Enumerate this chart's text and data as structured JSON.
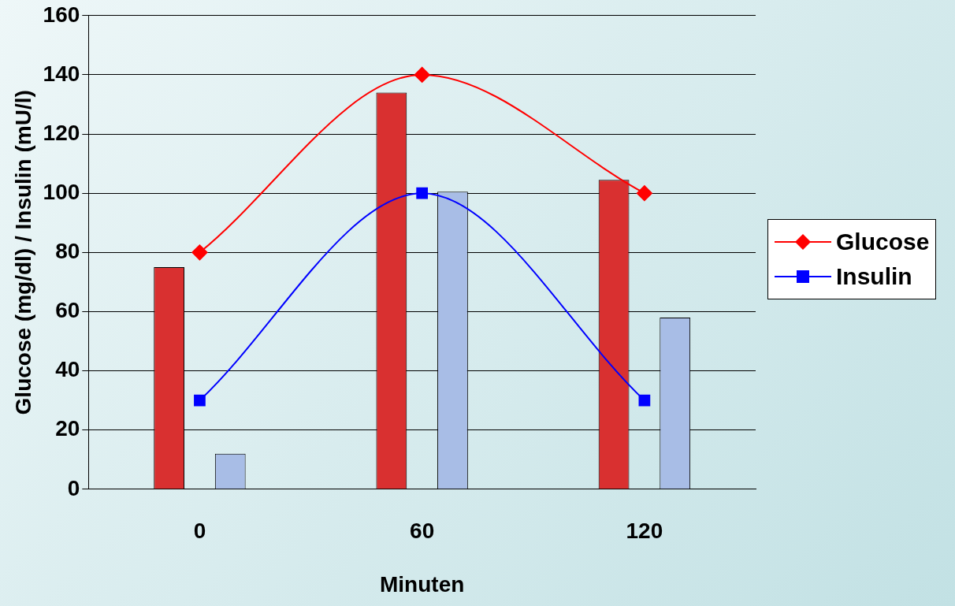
{
  "chart_data": {
    "type": "bar",
    "xlabel": "Minuten",
    "ylabel": "Glucose (mg/dl) / Insulin (mU/l)",
    "categories": [
      "0",
      "60",
      "120"
    ],
    "series": [
      {
        "color": "#d93030",
        "values": [
          75,
          134,
          104.5
        ]
      },
      {
        "color": "#a8bde6",
        "values": [
          12,
          100.5,
          58
        ]
      },
      {
        "type": "line",
        "name": "Glucose",
        "color": "#ff0000",
        "marker": "diamond",
        "values": [
          80,
          140,
          100
        ]
      },
      {
        "type": "line",
        "name": "Insulin",
        "color": "#0000ff",
        "marker": "square",
        "values": [
          30,
          100,
          30
        ]
      }
    ],
    "ylim": [
      0,
      160
    ],
    "yticks": [
      0,
      20,
      40,
      60,
      80,
      100,
      120,
      140,
      160
    ],
    "grid": "y",
    "legend": "right"
  }
}
